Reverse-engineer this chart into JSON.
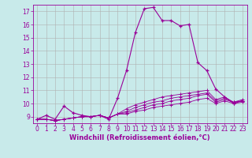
{
  "background_color": "#c8eaea",
  "grid_color": "#b0b0b0",
  "line_color": "#990099",
  "xlabel": "Windchill (Refroidissement éolien,°C)",
  "xlim": [
    -0.5,
    23.5
  ],
  "ylim": [
    8.5,
    17.5
  ],
  "yticks": [
    9,
    10,
    11,
    12,
    13,
    14,
    15,
    16,
    17
  ],
  "xticks": [
    0,
    1,
    2,
    3,
    4,
    5,
    6,
    7,
    8,
    9,
    10,
    11,
    12,
    13,
    14,
    15,
    16,
    17,
    18,
    19,
    20,
    21,
    22,
    23
  ],
  "series": [
    [
      8.8,
      9.1,
      8.8,
      9.8,
      9.3,
      9.1,
      9.0,
      9.1,
      8.8,
      10.4,
      12.5,
      15.4,
      17.2,
      17.3,
      16.3,
      16.3,
      15.9,
      16.0,
      13.1,
      12.5,
      11.1,
      10.5,
      10.0,
      10.2
    ],
    [
      8.8,
      8.8,
      8.7,
      8.8,
      8.9,
      9.0,
      9.0,
      9.1,
      8.9,
      9.2,
      9.6,
      9.9,
      10.1,
      10.3,
      10.5,
      10.6,
      10.7,
      10.8,
      10.9,
      11.0,
      10.3,
      10.5,
      10.1,
      10.3
    ],
    [
      8.8,
      8.8,
      8.7,
      8.8,
      8.9,
      9.0,
      9.0,
      9.1,
      8.9,
      9.2,
      9.4,
      9.7,
      9.9,
      10.1,
      10.2,
      10.4,
      10.5,
      10.6,
      10.7,
      10.8,
      10.2,
      10.4,
      10.1,
      10.2
    ],
    [
      8.8,
      8.8,
      8.7,
      8.8,
      8.9,
      9.0,
      9.0,
      9.1,
      8.9,
      9.2,
      9.3,
      9.5,
      9.7,
      9.9,
      10.0,
      10.2,
      10.3,
      10.4,
      10.6,
      10.7,
      10.1,
      10.3,
      10.1,
      10.2
    ],
    [
      8.8,
      8.8,
      8.7,
      8.8,
      8.9,
      9.0,
      9.0,
      9.1,
      8.9,
      9.2,
      9.2,
      9.4,
      9.5,
      9.7,
      9.8,
      9.9,
      10.0,
      10.1,
      10.3,
      10.4,
      10.0,
      10.2,
      10.0,
      10.1
    ]
  ],
  "tick_fontsize": 5.5,
  "xlabel_fontsize": 6.0
}
